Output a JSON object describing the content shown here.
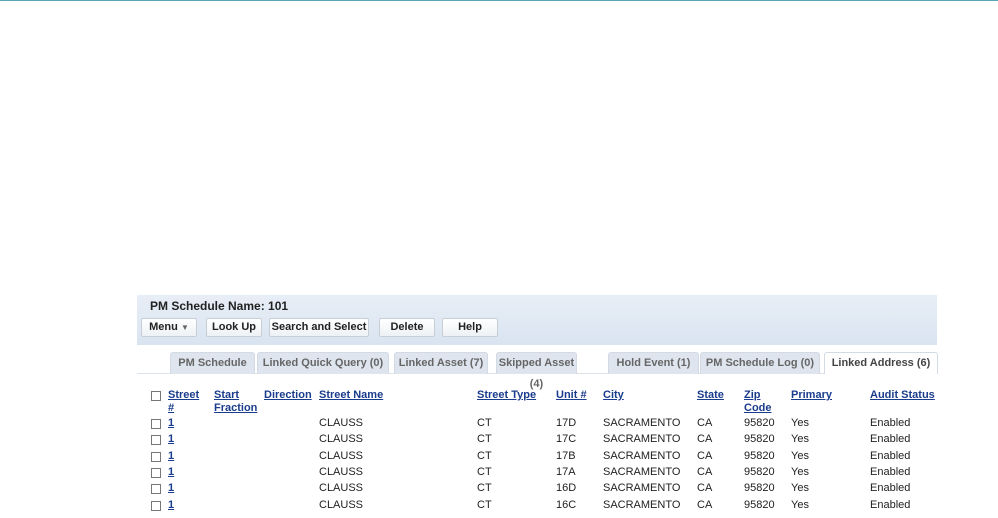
{
  "header": {
    "title": "PM Schedule Name: 101"
  },
  "toolbar": {
    "menu": "Menu",
    "menu_icon": "chevron-down-icon",
    "lookup": "Look Up",
    "search_select": "Search and Select",
    "delete": "Delete",
    "help": "Help"
  },
  "tabs": [
    {
      "label": "PM Schedule"
    },
    {
      "label": "Linked Quick Query (0)"
    },
    {
      "label": "Linked Asset (7)"
    },
    {
      "label": "Skipped Asset (4)"
    },
    {
      "label": "Hold Event (1)"
    },
    {
      "label": "PM Schedule Log (0)"
    },
    {
      "label": "Linked Address (6)",
      "active": true
    }
  ],
  "table": {
    "columns": [
      "Street #",
      "Start Fraction",
      "Direction",
      "Street Name",
      "Street Type",
      "Unit #",
      "City",
      "State",
      "Zip Code",
      "Primary",
      "Audit Status"
    ],
    "rows": [
      [
        "1",
        "",
        "",
        "CLAUSS",
        "CT",
        "17D",
        "SACRAMENTO",
        "CA",
        "95820",
        "Yes",
        "Enabled"
      ],
      [
        "1",
        "",
        "",
        "CLAUSS",
        "CT",
        "17C",
        "SACRAMENTO",
        "CA",
        "95820",
        "Yes",
        "Enabled"
      ],
      [
        "1",
        "",
        "",
        "CLAUSS",
        "CT",
        "17B",
        "SACRAMENTO",
        "CA",
        "95820",
        "Yes",
        "Enabled"
      ],
      [
        "1",
        "",
        "",
        "CLAUSS",
        "CT",
        "17A",
        "SACRAMENTO",
        "CA",
        "95820",
        "Yes",
        "Enabled"
      ],
      [
        "1",
        "",
        "",
        "CLAUSS",
        "CT",
        "16D",
        "SACRAMENTO",
        "CA",
        "95820",
        "Yes",
        "Enabled"
      ],
      [
        "1",
        "",
        "",
        "CLAUSS",
        "CT",
        "16C",
        "SACRAMENTO",
        "CA",
        "95820",
        "Yes",
        "Enabled"
      ]
    ]
  }
}
